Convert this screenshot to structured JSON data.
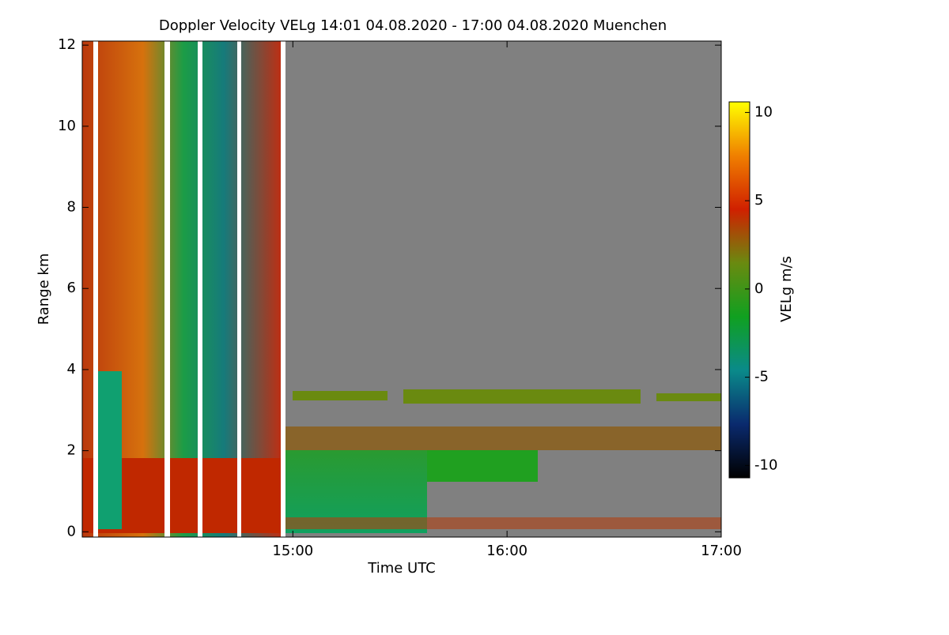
{
  "chart_data": {
    "type": "heatmap",
    "title": "Doppler Velocity VELg   14:01 04.08.2020 - 17:00 04.08.2020 Muenchen",
    "x_label": "Time UTC",
    "y_label": "Range km",
    "xlim": [
      14.0167,
      17.0
    ],
    "xticks": [
      {
        "value": 15,
        "label": "15:00"
      },
      {
        "value": 16,
        "label": "16:00"
      },
      {
        "value": 17,
        "label": "17:00"
      }
    ],
    "ylim": [
      -0.13,
      12.1
    ],
    "yticks": [
      0,
      2,
      4,
      6,
      8,
      10,
      12
    ],
    "colorbar": {
      "label": "VELg m/s",
      "lim": [
        -10.7,
        10.6
      ],
      "ticks": [
        -10,
        -5,
        0,
        5,
        10
      ],
      "colormap": [
        "#000000",
        "#0a2a6e",
        "#0a8a8a",
        "#10a020",
        "#6a8a10",
        "#d02000",
        "#f08000",
        "#ffff00"
      ]
    }
  }
}
